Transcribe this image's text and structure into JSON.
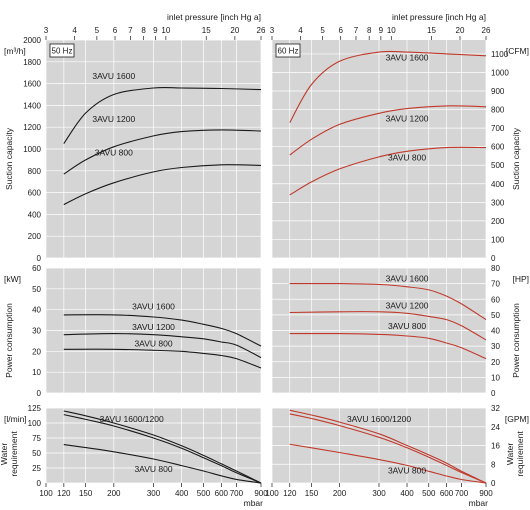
{
  "colors": {
    "panel_bg": "#d5d5d5",
    "grid": "#ffffff",
    "curve_50hz": "#1a1a1a",
    "curve_60hz": "#c0392b"
  },
  "top_axis": {
    "label": "inlet pressure [inch Hg a]",
    "ticks": [
      3,
      4,
      5,
      6,
      7,
      8,
      9,
      10,
      15,
      20,
      26
    ]
  },
  "bottom_axis": {
    "unit": "mbar",
    "ticks": [
      100,
      120,
      150,
      200,
      300,
      400,
      500,
      600,
      700,
      900
    ]
  },
  "panels": [
    {
      "id": "50hz",
      "badge": "50 Hz"
    },
    {
      "id": "60hz",
      "badge": "60 Hz"
    }
  ],
  "rows": [
    {
      "id": "suction",
      "title": "Suction capacity",
      "left_unit": "[m³/h]",
      "right_unit": "[CFM]",
      "left_ticks": [
        0,
        200,
        400,
        600,
        800,
        1000,
        1200,
        1400,
        1600,
        1800,
        2000
      ],
      "right_ticks": [
        0,
        100,
        200,
        300,
        400,
        500,
        600,
        700,
        800,
        900,
        1000,
        1100
      ]
    },
    {
      "id": "power",
      "title": "Power consumption",
      "left_unit": "[kW]",
      "right_unit": "[HP]",
      "left_ticks": [
        0,
        10,
        20,
        30,
        40,
        50,
        60
      ],
      "right_ticks": [
        0,
        10,
        20,
        30,
        40,
        50,
        60,
        70,
        80
      ]
    },
    {
      "id": "water",
      "title": "Water requirement",
      "left_unit": "[l/min]",
      "right_unit": "[GPM]",
      "left_ticks": [
        0,
        25,
        50,
        75,
        100,
        125
      ],
      "right_ticks": [
        0,
        8,
        16,
        24,
        32
      ]
    }
  ],
  "chart_data": [
    {
      "type": "line",
      "panel": "50hz",
      "row": "suction",
      "xlabel": "mbar",
      "ylabel": "Suction capacity [m³/h]",
      "ylim": [
        0,
        2000
      ],
      "series": [
        {
          "name": "3AVU 1600",
          "x": [
            120,
            150,
            200,
            300,
            400,
            600,
            900
          ],
          "values": [
            1050,
            1330,
            1500,
            1560,
            1560,
            1555,
            1545
          ]
        },
        {
          "name": "3AVU 1200",
          "x": [
            120,
            150,
            200,
            300,
            400,
            600,
            900
          ],
          "values": [
            770,
            900,
            1020,
            1120,
            1160,
            1175,
            1165
          ]
        },
        {
          "name": "3AVU 800",
          "x": [
            120,
            150,
            200,
            300,
            400,
            600,
            900
          ],
          "values": [
            490,
            590,
            690,
            790,
            830,
            855,
            850
          ]
        }
      ]
    },
    {
      "type": "line",
      "panel": "60hz",
      "row": "suction",
      "xlabel": "mbar",
      "ylabel": "Suction capacity [CFM]",
      "ylim": [
        0,
        1175
      ],
      "series": [
        {
          "name": "3AVU 1600",
          "x": [
            120,
            150,
            200,
            300,
            400,
            600,
            900
          ],
          "values": [
            730,
            935,
            1060,
            1110,
            1110,
            1100,
            1090
          ]
        },
        {
          "name": "3AVU 1200",
          "x": [
            120,
            150,
            200,
            300,
            400,
            600,
            900
          ],
          "values": [
            555,
            640,
            720,
            780,
            805,
            820,
            815
          ]
        },
        {
          "name": "3AVU 800",
          "x": [
            120,
            150,
            200,
            300,
            400,
            600,
            900
          ],
          "values": [
            340,
            410,
            480,
            545,
            575,
            595,
            595
          ]
        }
      ]
    },
    {
      "type": "line",
      "panel": "50hz",
      "row": "power",
      "xlabel": "mbar",
      "ylabel": "Power consumption [kW]",
      "ylim": [
        0,
        60
      ],
      "series": [
        {
          "name": "3AVU 1600",
          "x": [
            120,
            200,
            300,
            400,
            500,
            600,
            700,
            900
          ],
          "values": [
            37.5,
            37.5,
            36.5,
            35,
            33,
            31,
            28.5,
            22.5
          ]
        },
        {
          "name": "3AVU 1200",
          "x": [
            120,
            200,
            300,
            400,
            500,
            600,
            700,
            900
          ],
          "values": [
            28,
            28.5,
            28,
            27,
            26,
            24.5,
            23,
            17
          ]
        },
        {
          "name": "3AVU 800",
          "x": [
            120,
            200,
            300,
            400,
            500,
            600,
            700,
            900
          ],
          "values": [
            21,
            21,
            20.5,
            20,
            19,
            18,
            16.5,
            12
          ]
        }
      ]
    },
    {
      "type": "line",
      "panel": "60hz",
      "row": "power",
      "xlabel": "mbar",
      "ylabel": "Power consumption [HP]",
      "ylim": [
        0,
        80
      ],
      "series": [
        {
          "name": "3AVU 1600",
          "x": [
            120,
            200,
            300,
            400,
            500,
            600,
            700,
            900
          ],
          "values": [
            70,
            70,
            69.5,
            68,
            66,
            62,
            57,
            47
          ]
        },
        {
          "name": "3AVU 1200",
          "x": [
            120,
            200,
            300,
            400,
            500,
            600,
            700,
            900
          ],
          "values": [
            51.5,
            52,
            52,
            51,
            49,
            47,
            43,
            34
          ]
        },
        {
          "name": "3AVU 800",
          "x": [
            120,
            200,
            300,
            400,
            500,
            600,
            700,
            900
          ],
          "values": [
            38,
            38,
            37.5,
            36.5,
            35,
            32,
            29,
            22
          ]
        }
      ]
    },
    {
      "type": "line",
      "panel": "50hz",
      "row": "water",
      "xlabel": "mbar",
      "ylabel": "Water requirement [l/min]",
      "ylim": [
        0,
        125
      ],
      "series": [
        {
          "name": "3AVU 1600/1200",
          "x": [
            120,
            150,
            200,
            300,
            400,
            500,
            600,
            700,
            900
          ],
          "values": [
            120,
            112,
            100,
            80,
            62,
            46,
            32,
            20,
            0
          ]
        },
        {
          "name": "3AVU 1600/1200",
          "x": [
            120,
            150,
            200,
            300,
            400,
            500,
            600,
            700,
            900
          ],
          "values": [
            114,
            106,
            95,
            75,
            58,
            42,
            29,
            17,
            0
          ]
        },
        {
          "name": "3AVU 800",
          "x": [
            120,
            150,
            200,
            300,
            400,
            500,
            600,
            700,
            900
          ],
          "values": [
            64,
            59,
            52,
            40,
            29,
            20,
            12,
            6,
            0
          ]
        }
      ]
    },
    {
      "type": "line",
      "panel": "60hz",
      "row": "water",
      "xlabel": "mbar",
      "ylabel": "Water requirement [GPM]",
      "ylim": [
        0,
        32
      ],
      "series": [
        {
          "name": "3AVU 1600/1200",
          "x": [
            120,
            150,
            200,
            300,
            400,
            500,
            600,
            700,
            900
          ],
          "values": [
            31,
            29,
            26,
            21,
            16,
            12,
            8.5,
            5,
            0
          ]
        },
        {
          "name": "3AVU 1600/1200",
          "x": [
            120,
            150,
            200,
            300,
            400,
            500,
            600,
            700,
            900
          ],
          "values": [
            29.5,
            27.5,
            24.5,
            19.5,
            15,
            11,
            7.5,
            4.5,
            0
          ]
        },
        {
          "name": "3AVU 800",
          "x": [
            120,
            150,
            200,
            300,
            400,
            500,
            600,
            700,
            900
          ],
          "values": [
            16.5,
            15,
            13,
            10,
            7.5,
            5,
            3,
            1.5,
            0
          ]
        }
      ]
    }
  ],
  "curve_labels": [
    {
      "panel": "50hz",
      "row": "suction",
      "text": "3AVU 1600",
      "x": 200,
      "y": 1640
    },
    {
      "panel": "50hz",
      "row": "suction",
      "text": "3AVU 1200",
      "x": 200,
      "y": 1250
    },
    {
      "panel": "50hz",
      "row": "suction",
      "text": "3AVU 800",
      "x": 200,
      "y": 940
    },
    {
      "panel": "60hz",
      "row": "suction",
      "text": "3AVU 1600",
      "x": 400,
      "y": 1065
    },
    {
      "panel": "60hz",
      "row": "suction",
      "text": "3AVU 1200",
      "x": 400,
      "y": 735
    },
    {
      "panel": "60hz",
      "row": "suction",
      "text": "3AVU 800",
      "x": 400,
      "y": 525
    },
    {
      "panel": "50hz",
      "row": "power",
      "text": "3AVU 1600",
      "x": 300,
      "y": 40
    },
    {
      "panel": "50hz",
      "row": "power",
      "text": "3AVU 1200",
      "x": 300,
      "y": 30.2
    },
    {
      "panel": "50hz",
      "row": "power",
      "text": "3AVU 800",
      "x": 300,
      "y": 22.3
    },
    {
      "panel": "60hz",
      "row": "power",
      "text": "3AVU 1600",
      "x": 400,
      "y": 71.5
    },
    {
      "panel": "60hz",
      "row": "power",
      "text": "3AVU 1200",
      "x": 400,
      "y": 54
    },
    {
      "panel": "60hz",
      "row": "power",
      "text": "3AVU 800",
      "x": 400,
      "y": 41
    },
    {
      "panel": "50hz",
      "row": "water",
      "text": "3AVU 1600/1200",
      "x": 240,
      "y": 102
    },
    {
      "panel": "50hz",
      "row": "water",
      "text": "3AVU 800",
      "x": 300,
      "y": 18
    },
    {
      "panel": "60hz",
      "row": "water",
      "text": "3AVU 1600/1200",
      "x": 300,
      "y": 26
    },
    {
      "panel": "60hz",
      "row": "water",
      "text": "3AVU 800",
      "x": 400,
      "y": 4
    }
  ]
}
